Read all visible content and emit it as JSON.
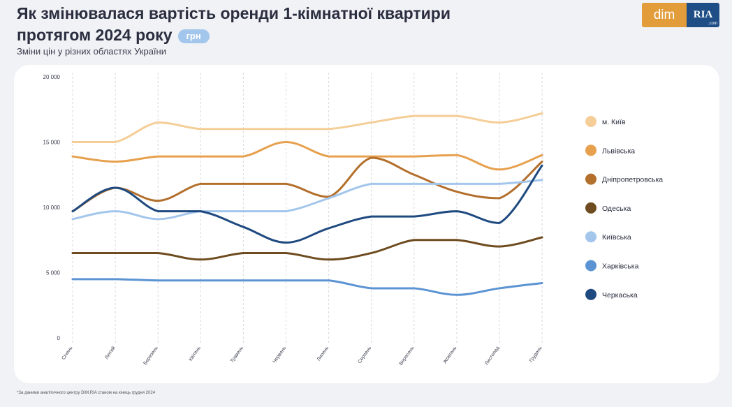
{
  "header": {
    "title_line1": "Як змінювалася вартість оренди 1-кімнатної квартири",
    "title_line2": "протягом 2024 року",
    "unit_badge": "грн",
    "subtitle": "Зміни цін у різних областях України"
  },
  "logo": {
    "left_text": "dim",
    "right_text": "RIA",
    "right_small": ".com"
  },
  "footnote": "*За даними аналітичного центру DIM.RIA станом на кінець грудня 2024",
  "chart_data": {
    "type": "line",
    "title": "Як змінювалася вартість оренди 1-кімнатної квартири протягом 2024 року",
    "subtitle": "Зміни цін у різних областях України",
    "xlabel": "",
    "ylabel": "",
    "ylim": [
      0,
      20000
    ],
    "yticks": [
      0,
      5000,
      10000,
      15000,
      20000
    ],
    "ytick_labels": [
      "0",
      "5 000",
      "10 000",
      "15 000",
      "20 000"
    ],
    "grid": "vertical dashed lines at each month",
    "legend_position": "right",
    "categories": [
      "Січень",
      "Лютий",
      "Березень",
      "Квітень",
      "Травень",
      "Червень",
      "Липень",
      "Серпень",
      "Вересень",
      "Жовтень",
      "Листопад",
      "Грудень"
    ],
    "series": [
      {
        "name": "м. Київ",
        "color": "#f5cd96",
        "values": [
          15000,
          15000,
          16500,
          16000,
          16000,
          16000,
          16000,
          16500,
          17000,
          17000,
          16500,
          17200
        ]
      },
      {
        "name": "Львівська",
        "color": "#e6a04e",
        "values": [
          13900,
          13500,
          13900,
          13900,
          13900,
          15000,
          13900,
          13900,
          13900,
          14000,
          12900,
          14000
        ]
      },
      {
        "name": "Дніпропетровська",
        "color": "#b36f2c",
        "values": [
          9700,
          11500,
          10500,
          11800,
          11800,
          11800,
          10800,
          13800,
          12500,
          11200,
          10700,
          13500
        ]
      },
      {
        "name": "Одеська",
        "color": "#6e4c1f",
        "values": [
          6500,
          6500,
          6500,
          6000,
          6500,
          6500,
          6000,
          6500,
          7500,
          7500,
          7000,
          7700
        ]
      },
      {
        "name": "Київська",
        "color": "#a3c6ec",
        "values": [
          9100,
          9700,
          9100,
          9700,
          9700,
          9700,
          10700,
          11800,
          11800,
          11800,
          11800,
          12100
        ]
      },
      {
        "name": "Харківська",
        "color": "#5b93d3",
        "values": [
          4500,
          4500,
          4400,
          4400,
          4400,
          4400,
          4400,
          3800,
          3800,
          3300,
          3800,
          4200
        ]
      },
      {
        "name": "Черкаська",
        "color": "#1f4a80",
        "values": [
          9700,
          11500,
          9700,
          9700,
          8500,
          7300,
          8400,
          9300,
          9300,
          9700,
          8800,
          13200
        ]
      }
    ]
  }
}
